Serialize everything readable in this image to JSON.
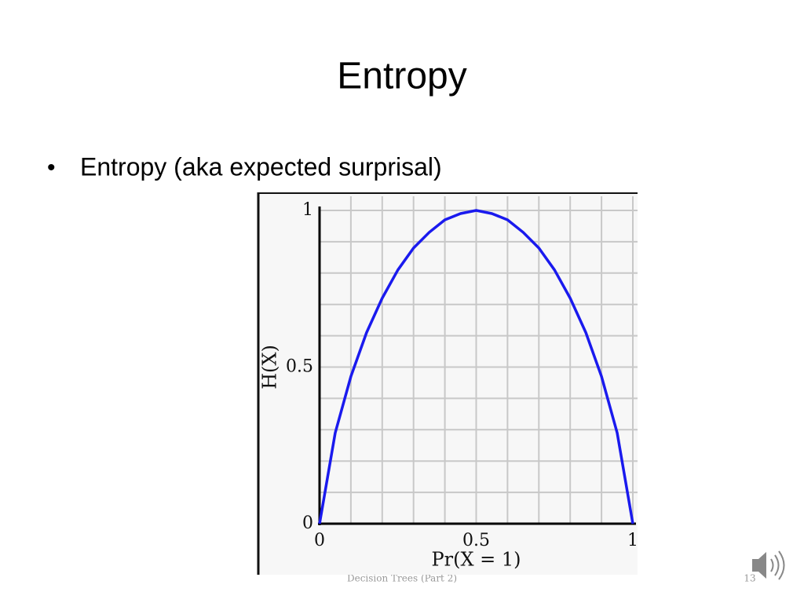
{
  "slide": {
    "title": "Entropy",
    "bullets": [
      "Entropy (aka expected surprisal)"
    ],
    "footer": "Decision Trees (Part 2)",
    "page_number": "13"
  },
  "chart_data": {
    "type": "line",
    "xlabel": "Pr(X = 1)",
    "ylabel": "H(X)",
    "x": [
      0,
      0.05,
      0.1,
      0.15,
      0.2,
      0.25,
      0.3,
      0.35,
      0.4,
      0.45,
      0.5,
      0.55,
      0.6,
      0.65,
      0.7,
      0.75,
      0.8,
      0.85,
      0.9,
      0.95,
      1
    ],
    "values": [
      0,
      0.29,
      0.47,
      0.61,
      0.72,
      0.81,
      0.88,
      0.93,
      0.97,
      0.99,
      1,
      0.99,
      0.97,
      0.93,
      0.88,
      0.81,
      0.72,
      0.61,
      0.47,
      0.29,
      0
    ],
    "color": "#1a1aee",
    "xlim": [
      0,
      1
    ],
    "ylim": [
      0,
      1
    ],
    "xticks": [
      0,
      0.5,
      1
    ],
    "yticks": [
      0,
      0.5,
      1
    ],
    "grid": true,
    "xgrid": [
      0.1,
      0.2,
      0.3,
      0.4,
      0.5,
      0.6,
      0.7,
      0.8,
      0.9,
      1
    ],
    "ygrid": [
      0.1,
      0.2,
      0.3,
      0.4,
      0.5,
      0.6,
      0.7,
      0.8,
      0.9,
      1
    ]
  }
}
